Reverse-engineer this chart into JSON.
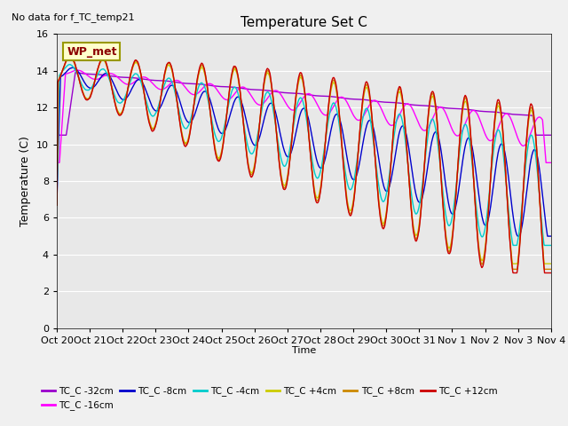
{
  "title": "Temperature Set C",
  "subtitle": "No data for f_TC_temp21",
  "ylabel": "Temperature (C)",
  "xlabel": "Time",
  "ylim": [
    0,
    16
  ],
  "yticks": [
    0,
    2,
    4,
    6,
    8,
    10,
    12,
    14,
    16
  ],
  "xtick_labels": [
    "Oct 20",
    "Oct 21",
    "Oct 22",
    "Oct 23",
    "Oct 24",
    "Oct 25",
    "Oct 26",
    "Oct 27",
    "Oct 28",
    "Oct 29",
    "Oct 30",
    "Oct 31",
    "Nov 1",
    "Nov 2",
    "Nov 3",
    "Nov 4"
  ],
  "series": [
    {
      "label": "TC_C -32cm",
      "color": "#9900cc"
    },
    {
      "label": "TC_C -16cm",
      "color": "#ff00ff"
    },
    {
      "label": "TC_C -8cm",
      "color": "#0000cc"
    },
    {
      "label": "TC_C -4cm",
      "color": "#00cccc"
    },
    {
      "label": "TC_C +4cm",
      "color": "#cccc00"
    },
    {
      "label": "TC_C +8cm",
      "color": "#cc8800"
    },
    {
      "label": "TC_C +12cm",
      "color": "#cc0000"
    }
  ],
  "wp_met_label": "WP_met",
  "fig_facecolor": "#f0f0f0",
  "ax_facecolor": "#e8e8e8",
  "grid_color": "white"
}
